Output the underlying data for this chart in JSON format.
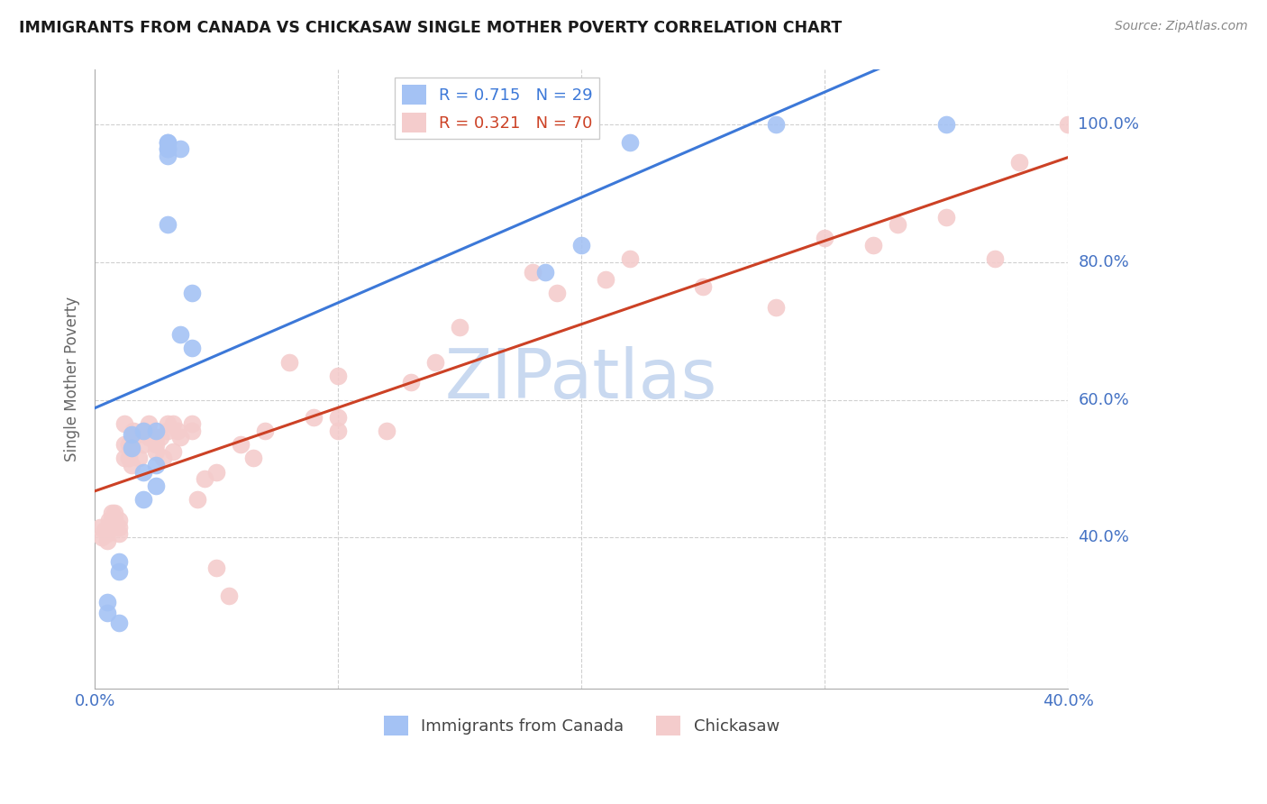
{
  "title": "IMMIGRANTS FROM CANADA VS CHICKASAW SINGLE MOTHER POVERTY CORRELATION CHART",
  "source": "Source: ZipAtlas.com",
  "ylabel": "Single Mother Poverty",
  "ytick_labels": [
    "40.0%",
    "60.0%",
    "80.0%",
    "100.0%"
  ],
  "ytick_values": [
    0.4,
    0.6,
    0.8,
    1.0
  ],
  "xtick_labels": [
    "0.0%",
    "40.0%"
  ],
  "xtick_positions": [
    0.0,
    0.4
  ],
  "xlim": [
    0.0,
    0.4
  ],
  "ylim": [
    0.18,
    1.08
  ],
  "legend_R1": "R = 0.715",
  "legend_N1": "N = 29",
  "legend_R2": "R = 0.321",
  "legend_N2": "N = 70",
  "color_blue": "#a4c2f4",
  "color_pink": "#f4cccc",
  "color_blue_line": "#3c78d8",
  "color_pink_line": "#cc4125",
  "color_axis_labels": "#4472c4",
  "watermark_text": "ZIPatlas",
  "watermark_color": "#c9d9f0",
  "blue_x": [
    0.005,
    0.005,
    0.01,
    0.01,
    0.01,
    0.015,
    0.015,
    0.02,
    0.02,
    0.02,
    0.025,
    0.025,
    0.025,
    0.03,
    0.03,
    0.03,
    0.03,
    0.03,
    0.03,
    0.035,
    0.035,
    0.04,
    0.04,
    0.185,
    0.2,
    0.2,
    0.22,
    0.28,
    0.35
  ],
  "blue_y": [
    0.305,
    0.29,
    0.365,
    0.35,
    0.275,
    0.55,
    0.53,
    0.555,
    0.495,
    0.455,
    0.555,
    0.505,
    0.475,
    0.975,
    0.975,
    0.965,
    0.965,
    0.955,
    0.855,
    0.965,
    0.695,
    0.755,
    0.675,
    0.785,
    0.825,
    1.0,
    0.975,
    1.0,
    1.0
  ],
  "pink_x": [
    0.002,
    0.003,
    0.004,
    0.005,
    0.005,
    0.006,
    0.006,
    0.007,
    0.007,
    0.008,
    0.008,
    0.01,
    0.01,
    0.01,
    0.012,
    0.012,
    0.012,
    0.014,
    0.014,
    0.015,
    0.016,
    0.016,
    0.018,
    0.02,
    0.02,
    0.022,
    0.022,
    0.025,
    0.025,
    0.025,
    0.027,
    0.028,
    0.03,
    0.03,
    0.032,
    0.032,
    0.034,
    0.035,
    0.04,
    0.04,
    0.042,
    0.045,
    0.05,
    0.05,
    0.055,
    0.06,
    0.065,
    0.07,
    0.08,
    0.09,
    0.1,
    0.1,
    0.1,
    0.12,
    0.13,
    0.14,
    0.15,
    0.18,
    0.19,
    0.21,
    0.22,
    0.25,
    0.28,
    0.3,
    0.32,
    0.33,
    0.35,
    0.37,
    0.38,
    0.4
  ],
  "pink_y": [
    0.415,
    0.4,
    0.41,
    0.405,
    0.395,
    0.415,
    0.425,
    0.435,
    0.425,
    0.435,
    0.425,
    0.405,
    0.415,
    0.425,
    0.565,
    0.535,
    0.515,
    0.535,
    0.515,
    0.505,
    0.555,
    0.545,
    0.515,
    0.555,
    0.535,
    0.565,
    0.545,
    0.545,
    0.535,
    0.525,
    0.545,
    0.515,
    0.565,
    0.555,
    0.565,
    0.525,
    0.555,
    0.545,
    0.565,
    0.555,
    0.455,
    0.485,
    0.495,
    0.355,
    0.315,
    0.535,
    0.515,
    0.555,
    0.655,
    0.575,
    0.575,
    0.555,
    0.635,
    0.555,
    0.625,
    0.655,
    0.705,
    0.785,
    0.755,
    0.775,
    0.805,
    0.765,
    0.735,
    0.835,
    0.825,
    0.855,
    0.865,
    0.805,
    0.945,
    1.0
  ],
  "background_color": "#ffffff",
  "grid_color": "#d0d0d0"
}
